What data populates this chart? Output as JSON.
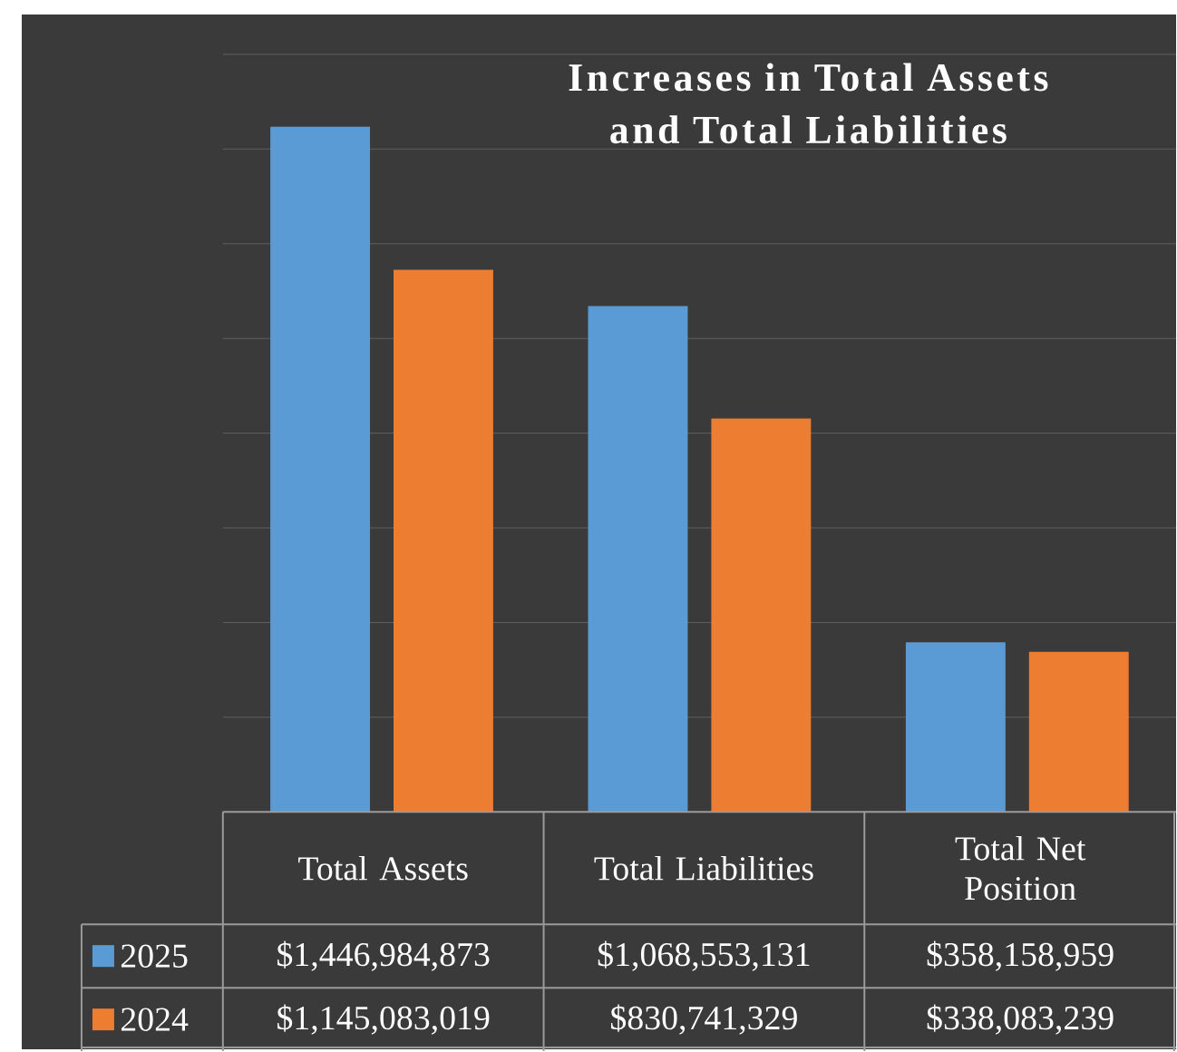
{
  "chart_data": {
    "type": "bar",
    "title": "Increases in Total Assets and Total Liabilities",
    "categories": [
      "Total Assets",
      "Total Liabilities",
      "Total Net Position"
    ],
    "series": [
      {
        "name": "2025",
        "color": "#5b9bd5",
        "values": [
          1446984873,
          1068553131,
          358158959
        ],
        "value_labels": [
          "$1,446,984,873",
          "$1,068,553,131",
          "$358,158,959"
        ]
      },
      {
        "name": "2024",
        "color": "#ed7d31",
        "values": [
          1145083019,
          830741329,
          338083239
        ],
        "value_labels": [
          "$1,145,083,019",
          "$830,741,329",
          "$338,083,239"
        ]
      }
    ],
    "ylim": [
      0,
      1600000000
    ],
    "yticks": [
      {
        "value": 0,
        "label": null
      },
      {
        "value": 200000000,
        "label": null
      },
      {
        "value": 400000000,
        "label": null
      },
      {
        "value": 600000000,
        "label": null
      },
      {
        "value": 800000000,
        "label": null
      },
      {
        "value": 1000000000,
        "label": null
      },
      {
        "value": 1200000000,
        "label": null
      },
      {
        "value": 1400000000,
        "label": null
      },
      {
        "value": 1600000000,
        "label": null
      }
    ],
    "grid": "y",
    "legend": "bottom"
  }
}
